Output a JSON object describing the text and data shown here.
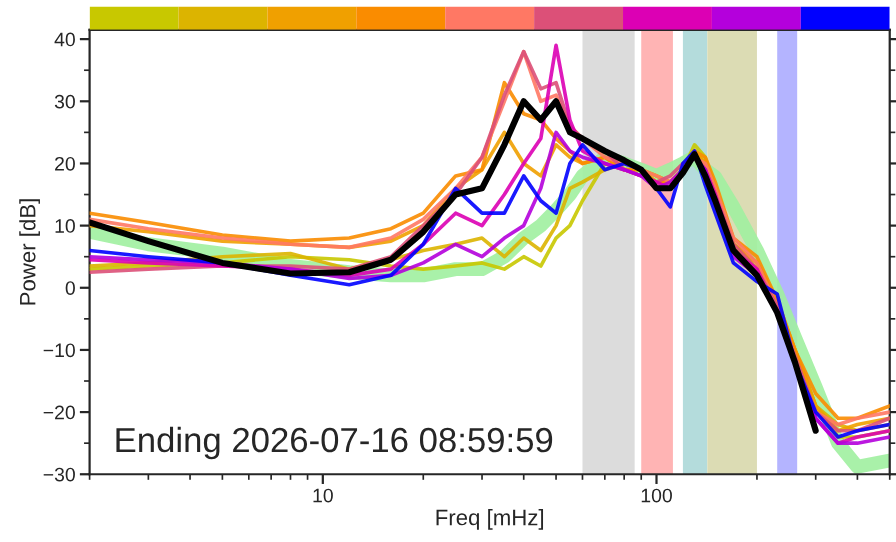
{
  "chart_data": {
    "type": "line",
    "xlabel": "Freq [mHz]",
    "ylabel": "Power [dB]",
    "log": "x",
    "xlim": [
      2,
      500
    ],
    "xticks": [
      10,
      100
    ],
    "ylim": [
      -30,
      41.5
    ],
    "yticks": [
      -30,
      -20,
      -10,
      0,
      10,
      20,
      30,
      40
    ],
    "grid": false,
    "legend": false,
    "annotations": [
      "Ending 2026-07-16 08:59:59"
    ],
    "bands": [
      {
        "axis": "x",
        "from": 60,
        "to": 86,
        "label": null,
        "color": "#dcdcdc"
      },
      {
        "axis": "x",
        "from": 90,
        "to": 112,
        "label": null,
        "color": "#ffb4b4"
      },
      {
        "axis": "x",
        "from": 120,
        "to": 142,
        "label": null,
        "color": "#b4dcdc"
      },
      {
        "axis": "x",
        "from": 142,
        "to": 200,
        "label": null,
        "color": "#dcdcb4"
      },
      {
        "axis": "x",
        "from": 230,
        "to": 264,
        "label": null,
        "color": "#b4b4ff"
      }
    ],
    "x": [
      2,
      3,
      5,
      8,
      12,
      16,
      20,
      25,
      30,
      35,
      40,
      45,
      50,
      55,
      60,
      70,
      80,
      90,
      100,
      110,
      120,
      130,
      140,
      150,
      170,
      200,
      230,
      260,
      300,
      350,
      400,
      500
    ],
    "series": [
      {
        "color": "#a0f0a0",
        "values": [
          9,
          7,
          5.5,
          3.5,
          2.5,
          2,
          2,
          3,
          3,
          5,
          8,
          10,
          12.5,
          15,
          18,
          21,
          20,
          19,
          18,
          19,
          20,
          21,
          19,
          17.8,
          13,
          6,
          -1,
          -8,
          -16,
          -25,
          -28.8,
          -27.8
        ]
      },
      {
        "color": "#c8c800",
        "values": [
          3,
          3.5,
          4,
          5,
          4.5,
          3.5,
          3,
          3.5,
          4,
          3,
          5,
          3.5,
          8,
          10,
          14,
          20,
          19,
          19,
          18,
          17,
          19,
          23,
          21,
          16,
          7,
          3,
          -3,
          -10,
          -19,
          -24,
          -24,
          -23
        ]
      },
      {
        "color": "#dcb400",
        "values": [
          3.5,
          4,
          5,
          5.5,
          3,
          4.5,
          6,
          7,
          8,
          5,
          8,
          6,
          10,
          16,
          17,
          19,
          20,
          19,
          18,
          17,
          19,
          22,
          20,
          16,
          7,
          4,
          -2,
          -10,
          -19,
          -22,
          -23,
          -22
        ]
      },
      {
        "color": "#f0a000",
        "values": [
          10,
          9,
          7.5,
          7,
          6.5,
          7.5,
          10,
          16,
          19,
          25,
          20,
          18,
          23,
          21,
          20,
          21,
          19,
          18,
          17,
          17,
          19,
          22,
          20,
          16,
          7,
          4,
          -3,
          -10,
          -19,
          -23,
          -22,
          -21
        ]
      },
      {
        "color": "#fa8c00",
        "values": [
          12,
          10.5,
          8.5,
          7.5,
          8,
          9.5,
          12,
          18,
          19,
          33,
          28,
          27,
          24,
          22,
          20,
          21,
          19,
          19,
          17,
          17,
          19,
          22,
          21,
          17,
          8,
          5,
          -2,
          -10,
          -17,
          -21,
          -21,
          -19
        ]
      },
      {
        "color": "#ff7864",
        "values": [
          11,
          9.5,
          8,
          7,
          6.5,
          8,
          11,
          16,
          21,
          30,
          38,
          30,
          31,
          26,
          24,
          21,
          20,
          19,
          18,
          17,
          19,
          21,
          20,
          16,
          8,
          4,
          -3,
          -12,
          -20,
          -22,
          -21,
          -20
        ]
      },
      {
        "color": "#dc5078",
        "values": [
          2.5,
          3,
          3.5,
          3.5,
          3,
          5,
          10,
          15,
          21,
          31,
          38,
          32,
          33,
          26,
          24,
          22,
          19,
          18,
          17,
          18,
          20,
          21,
          19,
          15,
          7,
          3,
          -3,
          -11,
          -20,
          -23,
          -23,
          -21
        ]
      },
      {
        "color": "#dc00b4",
        "values": [
          4.5,
          4,
          3.5,
          3,
          2,
          3,
          7,
          12,
          10,
          15,
          20,
          24,
          39,
          27,
          22,
          20,
          19,
          18,
          17,
          16,
          19,
          21,
          19,
          15,
          6,
          3,
          -4,
          -12,
          -21,
          -25,
          -24,
          -23
        ]
      },
      {
        "color": "#b400dc",
        "values": [
          5,
          4.5,
          4,
          3,
          1.5,
          2,
          4,
          7,
          5,
          8,
          10,
          16,
          25,
          22,
          21,
          20,
          19,
          18,
          16,
          17,
          19,
          21,
          19,
          14,
          5,
          2,
          -4,
          -12,
          -21,
          -25,
          -25,
          -24
        ]
      },
      {
        "color": "#0000ff",
        "values": [
          6,
          5,
          4,
          2,
          0.5,
          2,
          7,
          16,
          12,
          12,
          18,
          14,
          12,
          20,
          23,
          19,
          20,
          19,
          16,
          13,
          20,
          22,
          16.5,
          12,
          4,
          1,
          -1,
          -12,
          -20,
          -24,
          -23,
          -22
        ]
      },
      {
        "color": "#000000",
        "values": [
          10.5,
          7.5,
          4,
          2.3,
          2.5,
          4.5,
          9,
          15,
          16,
          23,
          30,
          27,
          30,
          25,
          24,
          22,
          20.5,
          19,
          16,
          16,
          18.5,
          21.5,
          18,
          14,
          6,
          2,
          -4,
          -12,
          -23,
          null,
          null,
          null
        ]
      }
    ]
  }
}
